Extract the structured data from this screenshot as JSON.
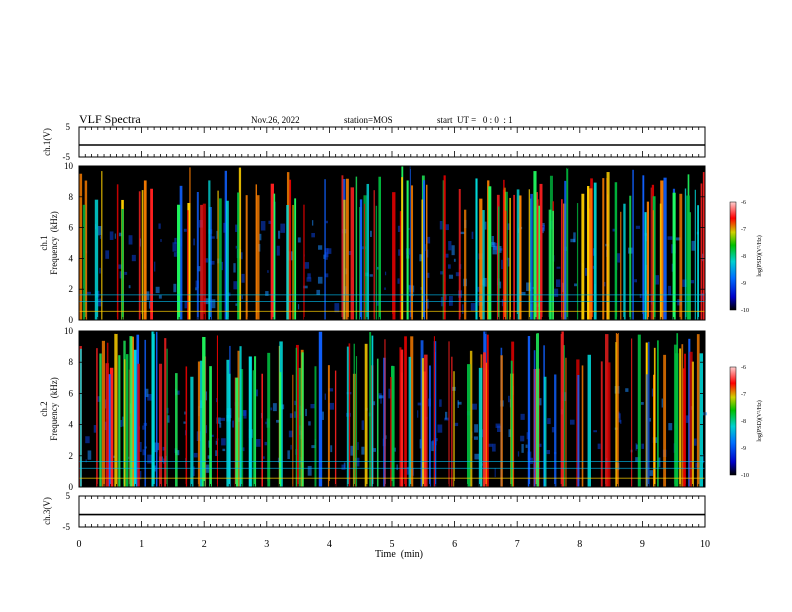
{
  "header": {
    "title": "VLF Spectra",
    "date": "Nov.26, 2022",
    "station": "station=MOS",
    "start": "start  UT =   0 : 0  : 1"
  },
  "chart_data": [
    {
      "type": "line",
      "name": "ch1-waveform",
      "ylabel": "ch.1(V)",
      "ylim": [
        -5,
        5
      ],
      "yticklabels": [
        "5",
        "-5"
      ],
      "xlim": [
        0,
        10
      ],
      "x": [
        0,
        10
      ],
      "values": [
        -1,
        -1
      ]
    },
    {
      "type": "heatmap",
      "name": "ch1-spectrogram",
      "ylabel": "ch.1\nFrequency (kHz)",
      "ylabel_lines": [
        "ch.1",
        "Frequency  (kHz)"
      ],
      "ylim": [
        0,
        10
      ],
      "yticklabels": [
        "0",
        "2",
        "4",
        "6",
        "8",
        "10"
      ],
      "xlim": [
        0,
        10
      ],
      "colorbar": {
        "label": "log(PSD)(V²/Hz)",
        "min": -10,
        "max": -6,
        "ticklabels": [
          "-6",
          "-7",
          "-8",
          "-9",
          "-10"
        ]
      }
    },
    {
      "type": "heatmap",
      "name": "ch2-spectrogram",
      "ylabel_lines": [
        "ch.2",
        "Frequency  (kHz)"
      ],
      "ylim": [
        0,
        10
      ],
      "yticklabels": [
        "0",
        "2",
        "4",
        "6",
        "8",
        "10"
      ],
      "xlim": [
        0,
        10
      ],
      "colorbar": {
        "label": "log(PSD)(V²/Hz)",
        "min": -10,
        "max": -6,
        "ticklabels": [
          "-6",
          "-7",
          "-8",
          "-9",
          "-10"
        ]
      }
    },
    {
      "type": "line",
      "name": "ch3-waveform",
      "ylabel": "ch.3(V)",
      "ylim": [
        -5,
        5
      ],
      "yticklabels": [
        "5",
        "-5"
      ],
      "xlim": [
        0,
        10
      ],
      "x": [
        0,
        10
      ],
      "values": [
        -1,
        -1
      ]
    }
  ],
  "xaxis": {
    "label": "Time  (min)",
    "ticklabels": [
      "0",
      "1",
      "2",
      "3",
      "4",
      "5",
      "6",
      "7",
      "8",
      "9",
      "10"
    ]
  },
  "colors": {
    "background": "#000000",
    "frame": "#000000"
  }
}
